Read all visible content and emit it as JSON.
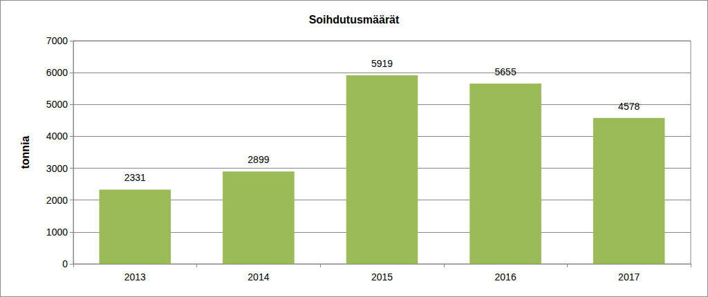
{
  "chart_data": {
    "type": "bar",
    "title": "Soihdutusmäärät",
    "y_label": "tonnia",
    "categories": [
      "2013",
      "2014",
      "2015",
      "2016",
      "2017"
    ],
    "values": [
      2331,
      2899,
      5919,
      5655,
      4578
    ],
    "color": "#9bbb59",
    "ylim": [
      0,
      7000
    ],
    "yticks": [
      0,
      1000,
      2000,
      3000,
      4000,
      5000,
      6000,
      7000
    ],
    "grid": true,
    "data_labels": true
  }
}
